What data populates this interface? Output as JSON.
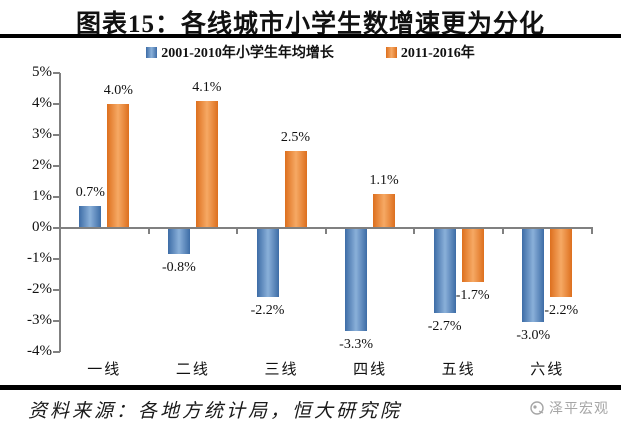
{
  "title": "图表15：各线城市小学生数增速更为分化",
  "legend": {
    "items": [
      {
        "label": "2001-2010年小学生年均增长",
        "color": "#4f81bd"
      },
      {
        "label": "2011-2016年",
        "color": "#e87f2e"
      }
    ]
  },
  "chart_data": {
    "type": "bar",
    "title": "图表15：各线城市小学生数增速更为分化",
    "categories": [
      "一线",
      "二线",
      "三线",
      "四线",
      "五线",
      "六线"
    ],
    "series": [
      {
        "name": "2001-2010年小学生年均增长",
        "color": "#4f81bd",
        "values": [
          0.7,
          -0.8,
          -2.2,
          -3.3,
          -2.7,
          -3.0
        ],
        "labels": [
          "0.7%",
          "-0.8%",
          "-2.2%",
          "-3.3%",
          "-2.7%",
          "-3.0%"
        ]
      },
      {
        "name": "2011-2016年",
        "color": "#e87f2e",
        "values": [
          4.0,
          4.1,
          2.5,
          1.1,
          -1.7,
          -2.2
        ],
        "labels": [
          "4.0%",
          "4.1%",
          "2.5%",
          "1.1%",
          "-1.7%",
          "-2.2%"
        ]
      }
    ],
    "ylim": [
      -4,
      5
    ],
    "yticks": [
      5,
      4,
      3,
      2,
      1,
      0,
      -1,
      -2,
      -3,
      -4
    ],
    "ytick_labels": [
      "5%",
      "4%",
      "3%",
      "2%",
      "1%",
      "0%",
      "-1%",
      "-2%",
      "-3%",
      "-4%"
    ],
    "xlabel": "",
    "ylabel": "",
    "grid": false,
    "legend_position": "top-center"
  },
  "footer": {
    "source": "资料来源：各地方统计局，恒大研究院",
    "watermark": "泽平宏观"
  },
  "colors": {
    "bar_blue_dark": "#3d6ca6",
    "bar_blue_light": "#8ab0d9",
    "bar_orange_dark": "#dd6f1e",
    "bar_orange_light": "#f6a964",
    "axis_gray": "#808080",
    "watermark_gray": "#a6a6a6",
    "divider_black": "#000000"
  }
}
